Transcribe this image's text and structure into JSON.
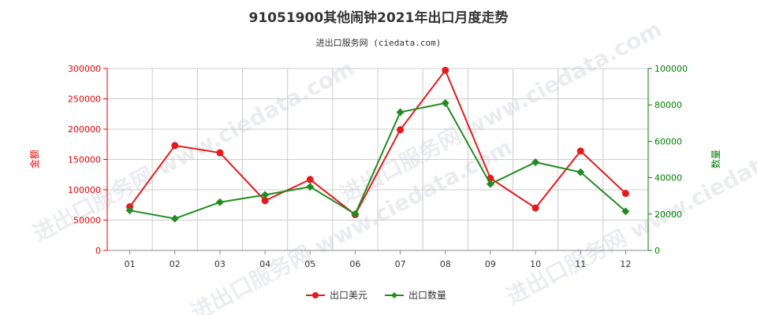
{
  "chart_data": {
    "type": "line",
    "title": "91051900其他闹钟2021年出口月度走势",
    "subtitle": "进出口服务网 (ciedata.com)",
    "watermark": "进出口服务网 www.ciedata.com",
    "categories": [
      "01",
      "02",
      "03",
      "04",
      "05",
      "06",
      "07",
      "08",
      "09",
      "10",
      "11",
      "12"
    ],
    "y_left": {
      "label": "金额",
      "ylim": [
        0,
        300000
      ],
      "ticks": [
        0,
        50000,
        100000,
        150000,
        200000,
        250000,
        300000
      ],
      "color": "#e60000"
    },
    "y_right": {
      "label": "数量",
      "ylim": [
        0,
        100000
      ],
      "ticks": [
        0,
        20000,
        40000,
        60000,
        80000,
        100000
      ],
      "color": "#008000"
    },
    "series": [
      {
        "name": "出口美元",
        "axis": "left",
        "color": "#e41a1c",
        "marker": "circle",
        "values": [
          72000,
          173000,
          161000,
          82000,
          117000,
          59000,
          199000,
          297000,
          119000,
          70000,
          164000,
          94000
        ]
      },
      {
        "name": "出口数量",
        "axis": "right",
        "color": "#228b22",
        "marker": "diamond",
        "values": [
          22000,
          17500,
          26500,
          30500,
          35000,
          20000,
          76000,
          81000,
          36500,
          48500,
          43000,
          21500
        ]
      }
    ],
    "grid": true,
    "legend_position": "bottom-center"
  }
}
